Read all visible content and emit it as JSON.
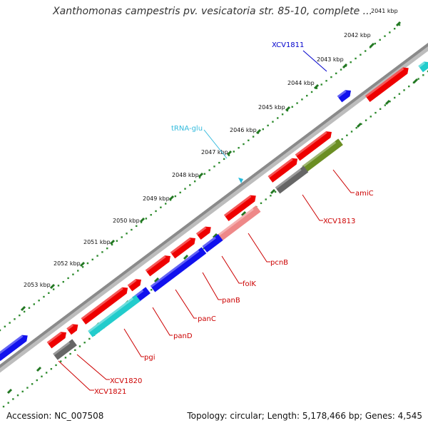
{
  "title": "Xanthomonas campestris pv. vesicatoria str. 85-10, complete ...",
  "footer": {
    "accession": "Accession: NC_007508",
    "summary": "Topology: circular; Length: 5,178,466 bp; Genes: 4,545"
  },
  "kbp_labels": [
    "2041 kbp",
    "2042 kbp",
    "2043 kbp",
    "2044 kbp",
    "2045 kbp",
    "2046 kbp",
    "2047 kbp",
    "2048 kbp",
    "2049 kbp",
    "2050 kbp",
    "2051 kbp",
    "2052 kbp",
    "2053 kbp"
  ],
  "gene_labels": [
    {
      "name": "XCV1811",
      "color": "#0000cc"
    },
    {
      "name": "tRNA-glu",
      "color": "#33bbdd"
    },
    {
      "name": "amiC",
      "color": "#cc0000"
    },
    {
      "name": "XCV1813",
      "color": "#cc0000"
    },
    {
      "name": "pcnB",
      "color": "#cc0000"
    },
    {
      "name": "folK",
      "color": "#cc0000"
    },
    {
      "name": "panB",
      "color": "#cc0000"
    },
    {
      "name": "panC",
      "color": "#cc0000"
    },
    {
      "name": "panD",
      "color": "#cc0000"
    },
    {
      "name": "pgi",
      "color": "#cc0000"
    },
    {
      "name": "XCV1820",
      "color": "#cc0000"
    },
    {
      "name": "XCV1821",
      "color": "#cc0000"
    }
  ],
  "colors": {
    "cds": "#ee0000",
    "cds_light": "#ee8888",
    "gene": "#1111ee",
    "rna": "#22cccc",
    "misc": "#666666",
    "olive": "#6b8e23",
    "backbone": "#808080"
  }
}
